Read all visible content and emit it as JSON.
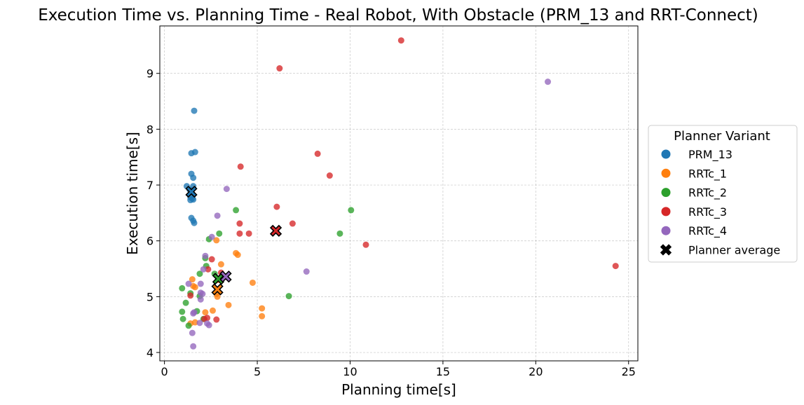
{
  "chart_data": {
    "type": "scatter",
    "title": "Execution Time vs. Planning Time - Real Robot, With Obstacle (PRM_13 and RRT-Connect)",
    "xlabel": "Planning time[s]",
    "ylabel": "Execution time[s]",
    "xlim": [
      -0.25,
      25.5
    ],
    "ylim": [
      3.85,
      9.85
    ],
    "xticks": [
      0,
      5,
      10,
      15,
      20,
      25
    ],
    "yticks": [
      4,
      5,
      6,
      7,
      8,
      9
    ],
    "grid": true,
    "legend": {
      "title": "Planner Variant",
      "placement": "outside-right",
      "entries": [
        "PRM_13",
        "RRTc_1",
        "RRTc_2",
        "RRTc_3",
        "RRTc_4",
        "Planner average"
      ]
    },
    "series": [
      {
        "name": "PRM_13",
        "color": "#1f77b4",
        "x": [
          1.6,
          1.45,
          1.65,
          1.45,
          1.55,
          1.2,
          1.55,
          1.35,
          1.45,
          1.4,
          1.5,
          1.55,
          1.4,
          1.45,
          1.55,
          1.6
        ],
        "y": [
          8.33,
          7.57,
          7.59,
          7.2,
          7.13,
          6.98,
          6.98,
          6.92,
          6.88,
          6.78,
          6.76,
          6.74,
          6.73,
          6.41,
          6.36,
          6.32
        ],
        "avg": [
          1.45,
          6.88
        ]
      },
      {
        "name": "RRTc_1",
        "color": "#ff7f0e",
        "x": [
          2.8,
          3.85,
          3.95,
          3.05,
          1.5,
          1.55,
          1.65,
          2.85,
          3.45,
          4.75,
          5.25,
          5.25,
          2.2,
          2.6,
          1.65,
          1.4,
          2.9,
          2.8
        ],
        "y": [
          6.01,
          5.78,
          5.75,
          5.58,
          5.31,
          5.19,
          5.17,
          5.0,
          4.85,
          5.25,
          4.79,
          4.65,
          4.72,
          4.75,
          4.54,
          4.52,
          5.3,
          5.05
        ],
        "avg": [
          2.85,
          5.13
        ]
      },
      {
        "name": "RRTc_2",
        "color": "#2ca02c",
        "x": [
          3.85,
          2.95,
          2.4,
          2.2,
          2.25,
          1.9,
          2.7,
          0.95,
          1.4,
          1.15,
          1.9,
          0.95,
          1.0,
          1.3,
          1.75,
          10.05,
          9.45,
          6.7,
          2.1
        ],
        "y": [
          6.55,
          6.13,
          6.03,
          5.69,
          5.55,
          5.41,
          5.41,
          5.15,
          5.06,
          4.89,
          5.01,
          4.73,
          4.6,
          4.48,
          4.74,
          6.55,
          6.13,
          5.01,
          4.6
        ],
        "avg": [
          2.9,
          5.32
        ]
      },
      {
        "name": "RRTc_3",
        "color": "#d62728",
        "x": [
          12.75,
          6.2,
          8.25,
          4.1,
          8.9,
          6.05,
          4.05,
          6.9,
          4.05,
          4.55,
          10.85,
          2.55,
          2.35,
          3.05,
          2.8,
          2.15,
          2.3,
          24.3,
          1.4
        ],
        "y": [
          9.59,
          9.09,
          7.56,
          7.33,
          7.17,
          6.61,
          6.31,
          6.31,
          6.13,
          6.13,
          5.93,
          5.67,
          5.49,
          5.43,
          4.59,
          4.6,
          4.62,
          5.55,
          5.02
        ],
        "avg": [
          6.0,
          6.18
        ]
      },
      {
        "name": "RRTc_4",
        "color": "#9467bd",
        "x": [
          20.65,
          3.35,
          2.85,
          2.55,
          2.2,
          2.1,
          7.65,
          1.3,
          1.95,
          2.05,
          1.95,
          1.55,
          1.6,
          1.9,
          2.3,
          2.4,
          1.5,
          1.55,
          1.95
        ],
        "y": [
          8.85,
          6.93,
          6.45,
          6.07,
          5.73,
          5.49,
          5.45,
          5.23,
          5.23,
          5.05,
          4.95,
          4.7,
          4.72,
          4.53,
          4.52,
          4.49,
          4.35,
          4.11,
          5.07
        ],
        "avg": [
          3.3,
          5.36
        ]
      }
    ]
  }
}
